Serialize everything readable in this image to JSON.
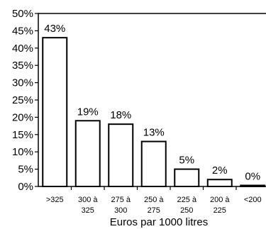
{
  "chart_data": {
    "type": "bar",
    "categories": [
      ">325",
      "300 à 325",
      "275 à 300",
      "250 à 275",
      "225 à 250",
      "200 à 225",
      "<200"
    ],
    "category_lines": [
      [
        ">325"
      ],
      [
        "300 à",
        "325"
      ],
      [
        "275 à",
        "300"
      ],
      [
        "250 à",
        "275"
      ],
      [
        "225 à",
        "250"
      ],
      [
        "200 à",
        "225"
      ],
      [
        "<200"
      ]
    ],
    "values": [
      43,
      19,
      18,
      13,
      5,
      2,
      0
    ],
    "data_labels": [
      "43%",
      "19%",
      "18%",
      "13%",
      "5%",
      "2%",
      "0%"
    ],
    "xlabel": "Euros par 1000 litres",
    "ylabel": "",
    "ylim": [
      0,
      50
    ],
    "yticks": [
      0,
      5,
      10,
      15,
      20,
      25,
      30,
      35,
      40,
      45,
      50
    ],
    "ytick_labels": [
      "0%",
      "5%",
      "10%",
      "15%",
      "20%",
      "25%",
      "30%",
      "35%",
      "40%",
      "45%",
      "50%"
    ],
    "grid": false,
    "legend": "none"
  }
}
